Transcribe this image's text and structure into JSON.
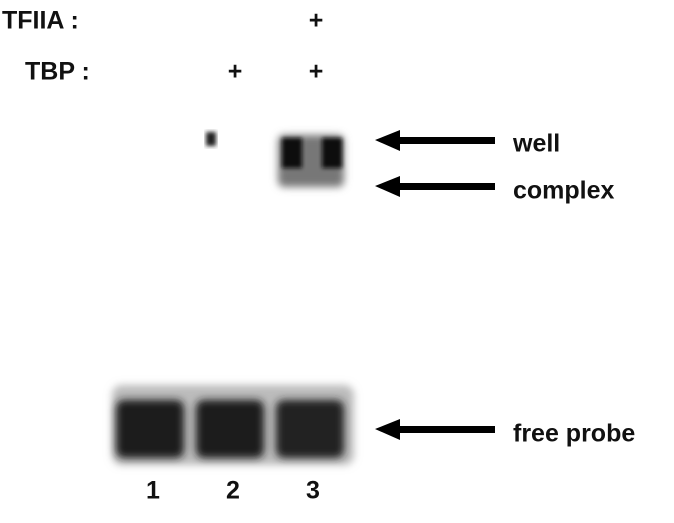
{
  "conditions": {
    "tfiia": {
      "label": "TFIIA :",
      "lane3": "+"
    },
    "tbp": {
      "label": "TBP :",
      "lane2": "+",
      "lane3": "+"
    }
  },
  "annotations": {
    "well": "well",
    "complex": "complex",
    "free_probe": "free probe"
  },
  "lanes": [
    1,
    2,
    3
  ]
}
